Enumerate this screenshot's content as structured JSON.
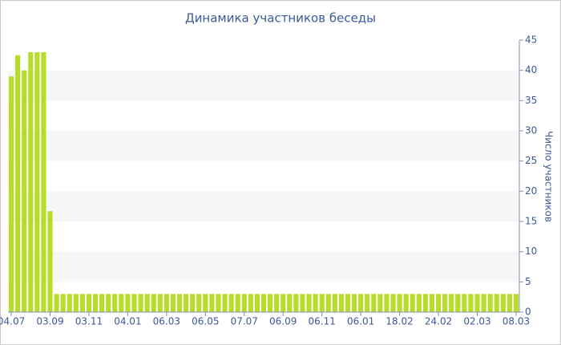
{
  "chart_data": {
    "type": "bar",
    "title": "Динамика участников беседы",
    "y_label": "Число участников",
    "categories": [
      "04.07",
      null,
      null,
      null,
      null,
      null,
      "03.09",
      null,
      null,
      null,
      null,
      null,
      "03.11",
      null,
      null,
      null,
      null,
      null,
      "04.01",
      null,
      null,
      null,
      null,
      null,
      "06.03",
      null,
      null,
      null,
      null,
      null,
      "06.05",
      null,
      null,
      null,
      null,
      null,
      "07.07",
      null,
      null,
      null,
      null,
      null,
      "06.09",
      null,
      null,
      null,
      null,
      null,
      "06.11",
      null,
      null,
      null,
      null,
      null,
      "06.01",
      null,
      null,
      null,
      null,
      null,
      "18.02",
      null,
      null,
      null,
      null,
      null,
      "24.02",
      null,
      null,
      null,
      null,
      null,
      "02.03",
      null,
      null,
      null,
      null,
      null,
      "08.03"
    ],
    "values": [
      39,
      42.5,
      40,
      43,
      43,
      43,
      16.7,
      3,
      3,
      3,
      3,
      3,
      3,
      3,
      3,
      3,
      3,
      3,
      3,
      3,
      3,
      3,
      3,
      3,
      3,
      3,
      3,
      3,
      3,
      3,
      3,
      3,
      3,
      3,
      3,
      3,
      3,
      3,
      3,
      3,
      3,
      3,
      3,
      3,
      3,
      3,
      3,
      3,
      3,
      3,
      3,
      3,
      3,
      3,
      3,
      3,
      3,
      3,
      3,
      3,
      3,
      3,
      3,
      3,
      3,
      3,
      3,
      3,
      3,
      3,
      3,
      3,
      3,
      3,
      3,
      3,
      3,
      3,
      3
    ],
    "color": "#b8dc2c",
    "ylim": [
      0,
      45
    ],
    "yticks": [
      0,
      5,
      10,
      15,
      20,
      25,
      30,
      35,
      40,
      45
    ],
    "y_axis_side": "right",
    "grid_bands": true
  }
}
